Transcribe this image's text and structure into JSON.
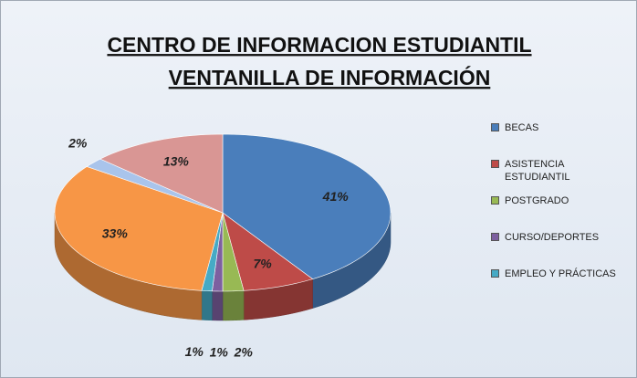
{
  "chart_data": {
    "type": "pie3d",
    "title": [
      "CENTRO DE INFORMACION ESTUDIANTIL",
      "VENTANILLA DE INFORMACIÓN"
    ],
    "categories": [
      "BECAS",
      "ASISTENCIA ESTUDIANTIL",
      "POSTGRADO",
      "CURSO/DEPORTES",
      "EMPLEO Y PRÁCTICAS",
      null,
      null,
      null
    ],
    "values": [
      41,
      7,
      2,
      1,
      1,
      33,
      2,
      13
    ],
    "value_labels": [
      "41%",
      "7%",
      "2%",
      "1%",
      "1%",
      "33%",
      "2%",
      "13%"
    ],
    "colors": [
      "#4a7ebb",
      "#be4b48",
      "#98b954",
      "#7d60a0",
      "#46aac5",
      "#f79646",
      "#a9c4eb",
      "#d99694"
    ],
    "legend": "right"
  }
}
